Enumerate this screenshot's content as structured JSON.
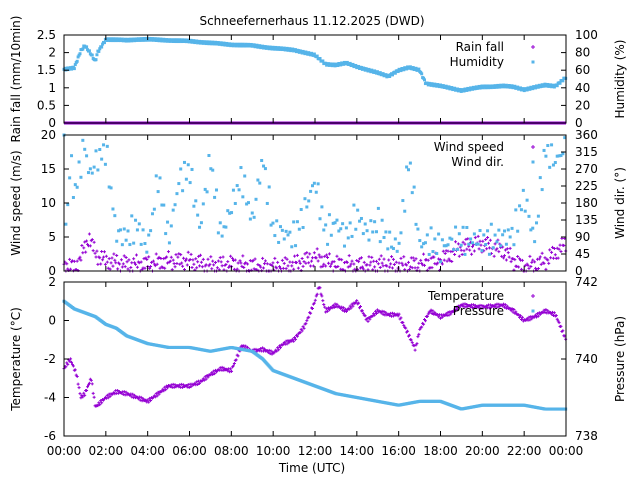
{
  "chart_data": {
    "title": "Schneefernerhaus 11.12.2025 (DWD)",
    "time_ticks": [
      "00:00",
      "02:00",
      "04:00",
      "06:00",
      "08:00",
      "10:00",
      "12:00",
      "14:00",
      "16:00",
      "18:00",
      "20:00",
      "22:00",
      "00:00"
    ],
    "x_range_hours": [
      0,
      24
    ],
    "xlabel": "Time (UTC)",
    "colors": {
      "purple": "#9400d3",
      "blue": "#56b4e9"
    },
    "panels": [
      {
        "type": "scatter",
        "legend": [
          "Rain fall",
          "Humidity"
        ],
        "left_axis": {
          "label": "Rain fall (mm/10min)",
          "range": [
            0,
            2.5
          ],
          "ticks": [
            "0",
            "0.5",
            "1",
            "1.5",
            "2",
            "2.5"
          ]
        },
        "right_axis": {
          "label": "Humidity (%)",
          "range": [
            0,
            100
          ],
          "ticks": [
            "0",
            "20",
            "40",
            "60",
            "80",
            "100"
          ]
        },
        "series": [
          {
            "name": "Rain fall",
            "axis": "left",
            "color": "purple",
            "points": [
              [
                0,
                0
              ],
              [
                24,
                0
              ]
            ]
          },
          {
            "name": "Humidity",
            "axis": "right",
            "color": "blue",
            "points": [
              [
                0,
                61
              ],
              [
                0.5,
                63
              ],
              [
                0.8,
                82
              ],
              [
                1.0,
                88
              ],
              [
                1.3,
                78
              ],
              [
                1.5,
                70
              ],
              [
                1.6,
                80
              ],
              [
                2.0,
                95
              ],
              [
                3.0,
                94
              ],
              [
                3.5,
                95
              ],
              [
                4.0,
                95
              ],
              [
                5.0,
                94
              ],
              [
                6.0,
                93
              ],
              [
                7.0,
                91
              ],
              [
                8.0,
                89
              ],
              [
                9.0,
                88
              ],
              [
                10.0,
                85
              ],
              [
                11.0,
                83
              ],
              [
                12.0,
                77
              ],
              [
                12.5,
                67
              ],
              [
                13.0,
                66
              ],
              [
                13.5,
                68
              ],
              [
                14.0,
                64
              ],
              [
                15.0,
                57
              ],
              [
                15.5,
                53
              ],
              [
                16.0,
                60
              ],
              [
                16.5,
                63
              ],
              [
                17.0,
                60
              ],
              [
                17.3,
                45
              ],
              [
                18.0,
                42
              ],
              [
                19.0,
                37
              ],
              [
                20.0,
                41
              ],
              [
                21.0,
                42
              ],
              [
                21.5,
                41
              ],
              [
                22.0,
                38
              ],
              [
                23.0,
                43
              ],
              [
                23.5,
                42
              ],
              [
                24.0,
                52
              ]
            ]
          }
        ]
      },
      {
        "type": "scatter",
        "legend": [
          "Wind speed",
          "Wind dir."
        ],
        "left_axis": {
          "label": "Wind speed (m/s)",
          "range": [
            0,
            20
          ],
          "ticks": [
            "0",
            "5",
            "10",
            "15",
            "20"
          ]
        },
        "right_axis": {
          "label": "Wind dir. (°)",
          "range": [
            0,
            360
          ],
          "ticks": [
            "0",
            "45",
            "90",
            "135",
            "180",
            "225",
            "270",
            "315",
            "360"
          ]
        },
        "series": [
          {
            "name": "Wind speed",
            "axis": "left",
            "color": "purple",
            "points": [
              [
                0,
                1.0
              ],
              [
                0.5,
                0.5
              ],
              [
                0.8,
                2.0
              ],
              [
                1.0,
                3.5
              ],
              [
                1.2,
                5.0
              ],
              [
                1.5,
                2.5
              ],
              [
                2.0,
                1.5
              ],
              [
                3.0,
                1.0
              ],
              [
                4.0,
                1.0
              ],
              [
                5.0,
                1.5
              ],
              [
                6.0,
                1.5
              ],
              [
                7.0,
                0.8
              ],
              [
                8.0,
                1.0
              ],
              [
                9.0,
                0.7
              ],
              [
                10.0,
                0.5
              ],
              [
                11.0,
                1.0
              ],
              [
                12.0,
                2.0
              ],
              [
                13.0,
                1.0
              ],
              [
                14.0,
                0.8
              ],
              [
                15.0,
                1.0
              ],
              [
                16.0,
                0.8
              ],
              [
                17.0,
                1.0
              ],
              [
                18.0,
                1.5
              ],
              [
                19.0,
                3.5
              ],
              [
                20.0,
                4.0
              ],
              [
                21.0,
                3.0
              ],
              [
                21.5,
                1.5
              ],
              [
                22.0,
                0.5
              ],
              [
                23.0,
                1.5
              ],
              [
                24.0,
                4.0
              ]
            ]
          },
          {
            "name": "Wind dir.",
            "axis": "right",
            "color": "blue",
            "points": [
              [
                0,
                360
              ],
              [
                0.1,
                90
              ],
              [
                0.3,
                300
              ],
              [
                0.5,
                200
              ],
              [
                1.0,
                340
              ],
              [
                1.2,
                250
              ],
              [
                1.5,
                290
              ],
              [
                2.0,
                320
              ],
              [
                2.5,
                100
              ],
              [
                3.0,
                90
              ],
              [
                3.5,
                120
              ],
              [
                4.0,
                60
              ],
              [
                4.5,
                250
              ],
              [
                5.0,
                80
              ],
              [
                5.5,
                240
              ],
              [
                6.0,
                270
              ],
              [
                6.5,
                110
              ],
              [
                7.0,
                300
              ],
              [
                7.5,
                90
              ],
              [
                8.0,
                170
              ],
              [
                8.5,
                250
              ],
              [
                9.0,
                130
              ],
              [
                9.5,
                300
              ],
              [
                10.0,
                110
              ],
              [
                11.0,
                90
              ],
              [
                11.5,
                160
              ],
              [
                12.0,
                240
              ],
              [
                12.5,
                100
              ],
              [
                13.0,
                130
              ],
              [
                13.5,
                90
              ],
              [
                14.0,
                150
              ],
              [
                14.5,
                100
              ],
              [
                15.0,
                130
              ],
              [
                15.5,
                80
              ],
              [
                16.0,
                60
              ],
              [
                16.5,
                300
              ],
              [
                17.0,
                70
              ],
              [
                17.5,
                80
              ],
              [
                18.0,
                60
              ],
              [
                18.5,
                80
              ],
              [
                19.0,
                85
              ],
              [
                20.0,
                80
              ],
              [
                21.0,
                90
              ],
              [
                21.5,
                100
              ],
              [
                22.0,
                200
              ],
              [
                22.5,
                80
              ],
              [
                23.0,
                320
              ],
              [
                23.5,
                290
              ],
              [
                24.0,
                330
              ]
            ]
          }
        ]
      },
      {
        "type": "scatter",
        "legend": [
          "Temperature",
          "Pressure"
        ],
        "left_axis": {
          "label": "Temperature (°C)",
          "range": [
            -6,
            2
          ],
          "ticks": [
            "-6",
            "-4",
            "-2",
            "0",
            "2"
          ]
        },
        "right_axis": {
          "label": "Pressure (hPa)",
          "range": [
            738,
            742
          ],
          "ticks": [
            "738",
            "740",
            "742"
          ]
        },
        "series": [
          {
            "name": "Temperature",
            "axis": "left",
            "color": "purple",
            "points": [
              [
                0,
                -2.5
              ],
              [
                0.3,
                -2.0
              ],
              [
                0.6,
                -2.8
              ],
              [
                0.8,
                -4.0
              ],
              [
                1.0,
                -3.8
              ],
              [
                1.3,
                -3.0
              ],
              [
                1.5,
                -4.5
              ],
              [
                2.0,
                -4.0
              ],
              [
                2.5,
                -3.7
              ],
              [
                3.0,
                -3.8
              ],
              [
                3.5,
                -4.0
              ],
              [
                4.0,
                -4.2
              ],
              [
                4.5,
                -3.8
              ],
              [
                5.0,
                -3.4
              ],
              [
                6.0,
                -3.4
              ],
              [
                6.5,
                -3.2
              ],
              [
                7.0,
                -2.8
              ],
              [
                7.5,
                -2.5
              ],
              [
                8.0,
                -2.6
              ],
              [
                8.5,
                -1.3
              ],
              [
                9.0,
                -1.6
              ],
              [
                9.5,
                -1.5
              ],
              [
                10.0,
                -1.7
              ],
              [
                10.5,
                -1.2
              ],
              [
                11.0,
                -1.0
              ],
              [
                11.5,
                -0.3
              ],
              [
                12.0,
                1.0
              ],
              [
                12.2,
                1.8
              ],
              [
                12.5,
                0.5
              ],
              [
                13.0,
                0.8
              ],
              [
                13.5,
                0.5
              ],
              [
                14.0,
                1.0
              ],
              [
                14.5,
                0.0
              ],
              [
                15.0,
                0.5
              ],
              [
                15.5,
                0.3
              ],
              [
                16.0,
                0.3
              ],
              [
                16.5,
                -0.8
              ],
              [
                16.8,
                -1.5
              ],
              [
                17.0,
                -0.5
              ],
              [
                17.5,
                0.5
              ],
              [
                18.0,
                0.2
              ],
              [
                18.5,
                0.4
              ],
              [
                19.0,
                0.8
              ],
              [
                20.0,
                0.7
              ],
              [
                21.0,
                0.8
              ],
              [
                21.5,
                0.5
              ],
              [
                22.0,
                0.0
              ],
              [
                22.5,
                0.2
              ],
              [
                23.0,
                0.5
              ],
              [
                23.5,
                0.3
              ],
              [
                24.0,
                -1.0
              ]
            ]
          },
          {
            "name": "Pressure",
            "axis": "right",
            "color": "blue",
            "points": [
              [
                0,
                741.5
              ],
              [
                0.5,
                741.3
              ],
              [
                1.0,
                741.2
              ],
              [
                1.5,
                741.1
              ],
              [
                2.0,
                740.9
              ],
              [
                2.5,
                740.8
              ],
              [
                3.0,
                740.6
              ],
              [
                3.5,
                740.5
              ],
              [
                4.0,
                740.4
              ],
              [
                5.0,
                740.3
              ],
              [
                6.0,
                740.3
              ],
              [
                7.0,
                740.2
              ],
              [
                8.0,
                740.3
              ],
              [
                9.0,
                740.2
              ],
              [
                9.5,
                740.0
              ],
              [
                10.0,
                739.7
              ],
              [
                10.5,
                739.6
              ],
              [
                11.0,
                739.5
              ],
              [
                11.5,
                739.4
              ],
              [
                12.0,
                739.3
              ],
              [
                12.5,
                739.2
              ],
              [
                13.0,
                739.1
              ],
              [
                14.0,
                739.0
              ],
              [
                15.0,
                738.9
              ],
              [
                16.0,
                738.8
              ],
              [
                17.0,
                738.9
              ],
              [
                18.0,
                738.9
              ],
              [
                18.5,
                738.8
              ],
              [
                19.0,
                738.7
              ],
              [
                20.0,
                738.8
              ],
              [
                21.0,
                738.8
              ],
              [
                22.0,
                738.8
              ],
              [
                23.0,
                738.7
              ],
              [
                24.0,
                738.7
              ]
            ]
          }
        ]
      }
    ]
  }
}
